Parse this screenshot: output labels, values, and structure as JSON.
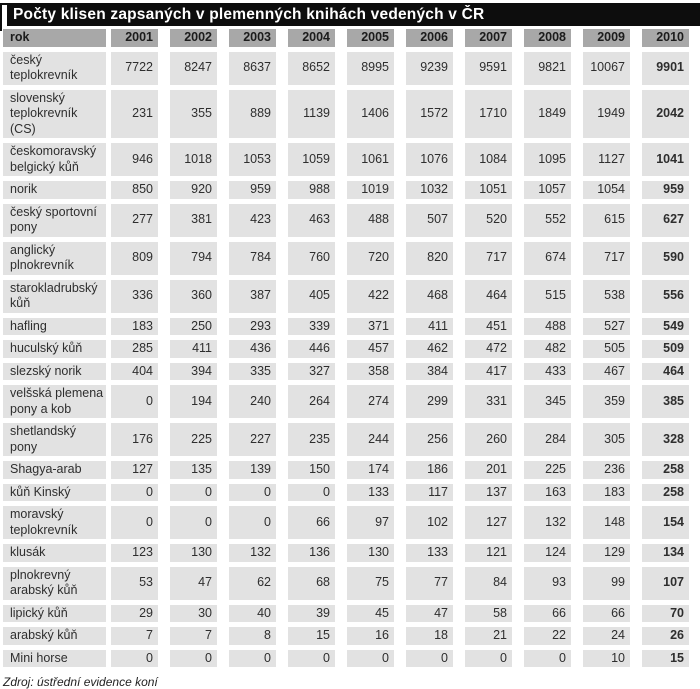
{
  "title": "Počty klisen zapsaných v plemenných knihách vedených v ČR",
  "source": "Zdroj: ústřední evidence koní",
  "colors": {
    "title_bg": "#0d0d0d",
    "title_fg": "#ffffff",
    "header_bg": "#a8a8a8",
    "cell_bg": "#e2e2e2",
    "gutter": "#ffffff",
    "text": "#2e2e2e"
  },
  "table": {
    "row_header_label": "rok",
    "years": [
      "2001",
      "2002",
      "2003",
      "2004",
      "2005",
      "2006",
      "2007",
      "2008",
      "2009",
      "2010"
    ],
    "rows": [
      {
        "label": "český teplokrevník",
        "values": [
          7722,
          8247,
          8637,
          8652,
          8995,
          9239,
          9591,
          9821,
          10067,
          9901
        ]
      },
      {
        "label": "slovenský teplokrevník (CS)",
        "values": [
          231,
          355,
          889,
          1139,
          1406,
          1572,
          1710,
          1849,
          1949,
          2042
        ]
      },
      {
        "label": "českomoravský belgický kůň",
        "values": [
          946,
          1018,
          1053,
          1059,
          1061,
          1076,
          1084,
          1095,
          1127,
          1041
        ]
      },
      {
        "label": "norik",
        "values": [
          850,
          920,
          959,
          988,
          1019,
          1032,
          1051,
          1057,
          1054,
          959
        ]
      },
      {
        "label": "český sportovní pony",
        "values": [
          277,
          381,
          423,
          463,
          488,
          507,
          520,
          552,
          615,
          627
        ]
      },
      {
        "label": "anglický plnokrevník",
        "values": [
          809,
          794,
          784,
          760,
          720,
          820,
          717,
          674,
          717,
          590
        ]
      },
      {
        "label": "starokladrubský kůň",
        "values": [
          336,
          360,
          387,
          405,
          422,
          468,
          464,
          515,
          538,
          556
        ]
      },
      {
        "label": "hafling",
        "values": [
          183,
          250,
          293,
          339,
          371,
          411,
          451,
          488,
          527,
          549
        ]
      },
      {
        "label": "huculský kůň",
        "values": [
          285,
          411,
          436,
          446,
          457,
          462,
          472,
          482,
          505,
          509
        ]
      },
      {
        "label": "slezský norik",
        "values": [
          404,
          394,
          335,
          327,
          358,
          384,
          417,
          433,
          467,
          464
        ]
      },
      {
        "label": "velšská plemena pony a kob",
        "values": [
          0,
          194,
          240,
          264,
          274,
          299,
          331,
          345,
          359,
          385
        ]
      },
      {
        "label": "shetlandský pony",
        "values": [
          176,
          225,
          227,
          235,
          244,
          256,
          260,
          284,
          305,
          328
        ]
      },
      {
        "label": "Shagya-arab",
        "values": [
          127,
          135,
          139,
          150,
          174,
          186,
          201,
          225,
          236,
          258
        ]
      },
      {
        "label": "kůň Kinský",
        "values": [
          0,
          0,
          0,
          0,
          133,
          117,
          137,
          163,
          183,
          258
        ]
      },
      {
        "label": "moravský teplokrevník",
        "values": [
          0,
          0,
          0,
          66,
          97,
          102,
          127,
          132,
          148,
          154
        ]
      },
      {
        "label": "klusák",
        "values": [
          123,
          130,
          132,
          136,
          130,
          133,
          121,
          124,
          129,
          134
        ]
      },
      {
        "label": "plnokrevný arabský kůň",
        "values": [
          53,
          47,
          62,
          68,
          75,
          77,
          84,
          93,
          99,
          107
        ]
      },
      {
        "label": "lipický kůň",
        "values": [
          29,
          30,
          40,
          39,
          45,
          47,
          58,
          66,
          66,
          70
        ]
      },
      {
        "label": "arabský kůň",
        "values": [
          7,
          7,
          8,
          15,
          16,
          18,
          21,
          22,
          24,
          26
        ]
      },
      {
        "label": "Mini horse",
        "values": [
          0,
          0,
          0,
          0,
          0,
          0,
          0,
          0,
          10,
          15
        ]
      }
    ]
  }
}
